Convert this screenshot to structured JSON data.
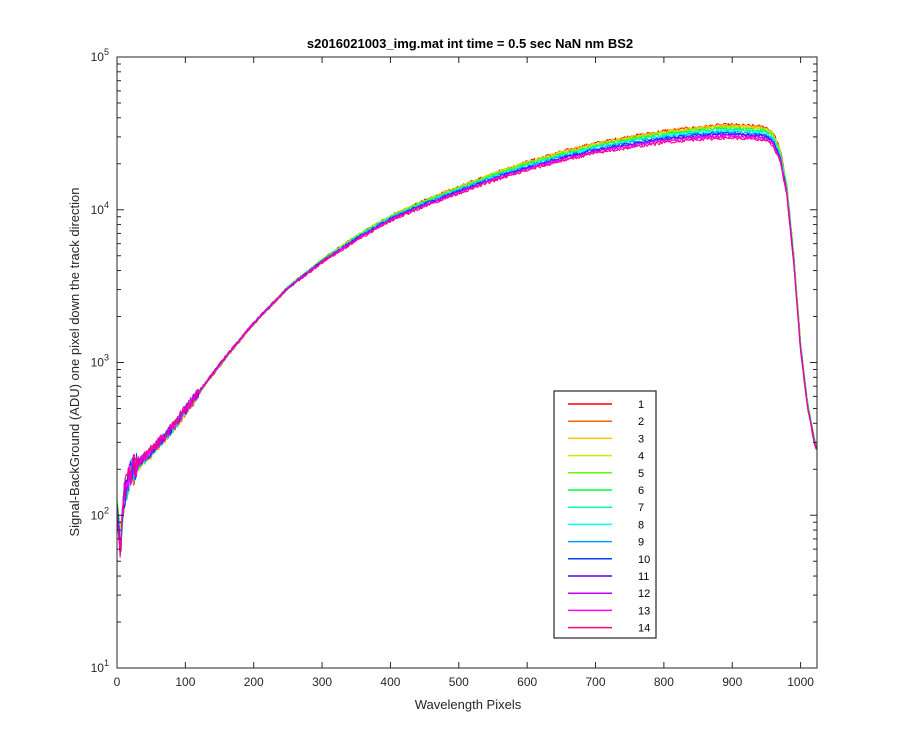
{
  "chart_data": {
    "type": "line",
    "title": "s2016021003_img.mat int time = 0.5 sec  NaN nm BS2",
    "xlabel": "Wavelength Pixels",
    "ylabel": "Signal-BackGround (ADU) one pixel down the track direction",
    "xlim": [
      0,
      1024
    ],
    "ylim": [
      10,
      100000
    ],
    "yscale": "log",
    "grid": false,
    "legend_position": "lower-right",
    "x_ticks": [
      {
        "value": 0,
        "label": "0"
      },
      {
        "value": 100,
        "label": "100"
      },
      {
        "value": 200,
        "label": "200"
      },
      {
        "value": 300,
        "label": "300"
      },
      {
        "value": 400,
        "label": "400"
      },
      {
        "value": 500,
        "label": "500"
      },
      {
        "value": 600,
        "label": "600"
      },
      {
        "value": 700,
        "label": "700"
      },
      {
        "value": 800,
        "label": "800"
      },
      {
        "value": 900,
        "label": "900"
      },
      {
        "value": 1000,
        "label": "1000"
      }
    ],
    "y_ticks": [
      {
        "value": 10,
        "base": "10",
        "exp": "1"
      },
      {
        "value": 100,
        "base": "10",
        "exp": "2"
      },
      {
        "value": 1000,
        "base": "10",
        "exp": "3"
      },
      {
        "value": 10000,
        "base": "10",
        "exp": "4"
      },
      {
        "value": 100000,
        "base": "10",
        "exp": "5"
      }
    ],
    "x": [
      0,
      5,
      10,
      15,
      20,
      30,
      50,
      75,
      100,
      125,
      150,
      175,
      200,
      250,
      300,
      350,
      400,
      450,
      500,
      550,
      600,
      650,
      700,
      750,
      800,
      850,
      880,
      900,
      920,
      940,
      950,
      960,
      970,
      980,
      990,
      1000,
      1010,
      1020,
      1024
    ],
    "series": [
      {
        "name": "1",
        "color": "#ff0000",
        "values": [
          110,
          70,
          125,
          150,
          185,
          210,
          255,
          340,
          480,
          680,
          960,
          1320,
          1800,
          3100,
          4700,
          6700,
          9100,
          11500,
          14100,
          17300,
          20600,
          24000,
          27300,
          30100,
          32800,
          34700,
          35800,
          36000,
          35600,
          35200,
          34500,
          32000,
          25000,
          14500,
          5100,
          1350,
          560,
          320,
          280
        ]
      },
      {
        "name": "2",
        "color": "#ff6000",
        "values": [
          112,
          72,
          123,
          148,
          183,
          208,
          253,
          337,
          476,
          674,
          952,
          1310,
          1785,
          3070,
          4650,
          6630,
          9000,
          11380,
          13950,
          17100,
          20350,
          23700,
          26950,
          29700,
          32350,
          34200,
          35250,
          35450,
          35050,
          34650,
          33950,
          31500,
          24600,
          14300,
          5030,
          1330,
          555,
          318,
          278
        ]
      },
      {
        "name": "3",
        "color": "#ffc000",
        "values": [
          111,
          71,
          124,
          149,
          184,
          209,
          254,
          338,
          478,
          677,
          956,
          1315,
          1792,
          3085,
          4675,
          6665,
          9050,
          11440,
          14020,
          17200,
          20480,
          23850,
          27120,
          29900,
          32570,
          34450,
          35520,
          35720,
          35320,
          34920,
          34220,
          31750,
          24800,
          14400,
          5060,
          1340,
          557,
          319,
          279
        ]
      },
      {
        "name": "4",
        "color": "#bff000",
        "values": [
          109,
          69,
          126,
          151,
          186,
          211,
          256,
          341,
          481,
          682,
          963,
          1325,
          1805,
          3110,
          4710,
          6700,
          9080,
          11450,
          14000,
          17120,
          20300,
          23550,
          26750,
          29450,
          32050,
          33850,
          34850,
          35000,
          34600,
          34200,
          33550,
          31100,
          24300,
          14150,
          4980,
          1320,
          552,
          316,
          276
        ]
      },
      {
        "name": "5",
        "color": "#60ff00",
        "values": [
          108,
          68,
          127,
          152,
          187,
          212,
          257,
          342,
          482,
          683,
          964,
          1326,
          1806,
          3105,
          4690,
          6660,
          9020,
          11360,
          13880,
          16950,
          20080,
          23280,
          26420,
          29050,
          31600,
          33350,
          34300,
          34450,
          34050,
          33650,
          33000,
          30600,
          23950,
          13950,
          4920,
          1305,
          548,
          314,
          275
        ]
      },
      {
        "name": "6",
        "color": "#00ff40",
        "values": [
          107,
          67,
          128,
          153,
          188,
          213,
          258,
          343,
          483,
          684,
          965,
          1327,
          1807,
          3100,
          4670,
          6620,
          8960,
          11270,
          13760,
          16780,
          19860,
          23010,
          26090,
          28650,
          31150,
          32850,
          33750,
          33900,
          33500,
          33100,
          32450,
          30100,
          23600,
          13750,
          4860,
          1290,
          544,
          312,
          274
        ]
      },
      {
        "name": "7",
        "color": "#00ffa0",
        "values": [
          106,
          66,
          129,
          154,
          189,
          214,
          259,
          344,
          484,
          685,
          966,
          1328,
          1808,
          3095,
          4650,
          6580,
          8900,
          11180,
          13640,
          16610,
          19640,
          22740,
          25760,
          28250,
          30700,
          32350,
          33200,
          33350,
          32950,
          32550,
          31900,
          29600,
          23250,
          13550,
          4800,
          1275,
          540,
          310,
          273
        ]
      },
      {
        "name": "8",
        "color": "#00ffff",
        "values": [
          105,
          65,
          130,
          155,
          190,
          215,
          260,
          345,
          485,
          686,
          967,
          1329,
          1809,
          3090,
          4630,
          6540,
          8840,
          11090,
          13520,
          16440,
          19420,
          22470,
          25430,
          27850,
          30250,
          31850,
          32650,
          32800,
          32400,
          32000,
          31350,
          29100,
          22900,
          13350,
          4740,
          1260,
          536,
          308,
          272
        ]
      },
      {
        "name": "9",
        "color": "#00a0ff",
        "values": [
          104,
          64,
          131,
          156,
          191,
          216,
          261,
          346,
          486,
          687,
          968,
          1330,
          1810,
          3085,
          4610,
          6500,
          8780,
          11000,
          13400,
          16270,
          19200,
          22200,
          25100,
          27450,
          29800,
          31350,
          32100,
          32250,
          31850,
          31450,
          30800,
          28600,
          22550,
          13150,
          4680,
          1245,
          532,
          306,
          271
        ]
      },
      {
        "name": "10",
        "color": "#0040ff",
        "values": [
          103,
          63,
          132,
          157,
          192,
          217,
          262,
          347,
          487,
          688,
          969,
          1331,
          1811,
          3080,
          4590,
          6460,
          8720,
          10910,
          13280,
          16100,
          18980,
          21930,
          24770,
          27050,
          29350,
          30850,
          31550,
          31700,
          31300,
          30900,
          30250,
          28100,
          22200,
          12950,
          4620,
          1230,
          528,
          304,
          270
        ]
      },
      {
        "name": "11",
        "color": "#6000ff",
        "values": [
          102,
          62,
          133,
          158,
          193,
          218,
          263,
          348,
          488,
          689,
          970,
          1332,
          1812,
          3075,
          4570,
          6420,
          8660,
          10820,
          13160,
          15930,
          18760,
          21660,
          24440,
          26650,
          28900,
          30350,
          31000,
          31150,
          30750,
          30350,
          29700,
          27600,
          21850,
          12750,
          4560,
          1215,
          524,
          302,
          269
        ]
      },
      {
        "name": "12",
        "color": "#c000ff",
        "values": [
          101,
          61,
          134,
          159,
          194,
          219,
          264,
          349,
          489,
          690,
          971,
          1333,
          1813,
          3070,
          4550,
          6380,
          8600,
          10730,
          13040,
          15760,
          18540,
          21390,
          24110,
          26250,
          28450,
          29850,
          30450,
          30600,
          30200,
          29800,
          29150,
          27100,
          21500,
          12550,
          4500,
          1200,
          520,
          300,
          268
        ]
      },
      {
        "name": "13",
        "color": "#ff00ff",
        "values": [
          100,
          60,
          135,
          160,
          195,
          220,
          265,
          350,
          490,
          691,
          972,
          1334,
          1814,
          3065,
          4530,
          6340,
          8540,
          10640,
          12920,
          15590,
          18320,
          21120,
          23780,
          25850,
          28000,
          29350,
          29900,
          30050,
          29650,
          29250,
          28600,
          26600,
          21150,
          12350,
          4440,
          1185,
          516,
          298,
          267
        ]
      },
      {
        "name": "14",
        "color": "#ff0080",
        "values": [
          99,
          59,
          136,
          161,
          196,
          221,
          266,
          351,
          491,
          692,
          973,
          1335,
          1815,
          3060,
          4510,
          6300,
          8480,
          10550,
          12800,
          15420,
          18100,
          20850,
          23450,
          25450,
          27550,
          28850,
          29350,
          29500,
          29100,
          28700,
          28050,
          26100,
          20800,
          12150,
          4380,
          1170,
          512,
          296,
          266
        ]
      }
    ]
  }
}
